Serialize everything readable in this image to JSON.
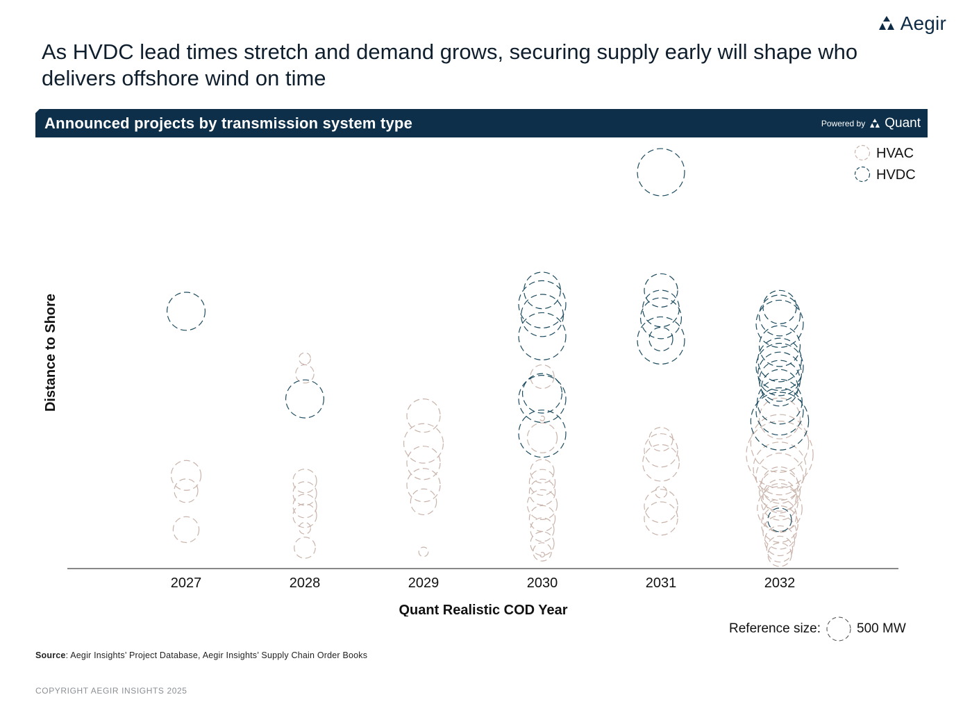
{
  "brand": {
    "name": "Aegir",
    "icon": "aegir-triangles-logo"
  },
  "headline": "As HVDC lead times stretch and demand grows, securing supply early will shape who delivers offshore wind on time",
  "banner": {
    "title": "Announced projects by transmission system type",
    "powered_label": "Powered by",
    "powered_name": "Quant"
  },
  "reference": {
    "label": "Reference size:",
    "value_label": "500 MW"
  },
  "source": {
    "label": "Source",
    "text": ": Aegir Insights’ Project Database, Aegir Insights’ Supply Chain Order Books"
  },
  "copyright": "COPYRIGHT AEGIR INSIGHTS 2025",
  "colors": {
    "hvac": "#c9b3aa",
    "hvdc": "#1b4a5e",
    "banner": "#0d2f49",
    "text": "#0f1e2d"
  },
  "chart_data": {
    "type": "scatter",
    "title": "Announced projects by transmission system type",
    "xlabel": "Quant Realistic COD Year",
    "ylabel": "Distance to Shore",
    "categories": [
      "2027",
      "2028",
      "2029",
      "2030",
      "2031",
      "2032"
    ],
    "y_range": [
      0,
      300
    ],
    "y_ticks_shown": false,
    "size_unit": "MW",
    "reference_size_mw": 500,
    "legend_position": "top-right",
    "series": [
      {
        "name": "HVAC",
        "color": "#c9b3aa",
        "points": [
          {
            "x": "2027",
            "y": 67,
            "mw": 800
          },
          {
            "x": "2027",
            "y": 56,
            "mw": 500
          },
          {
            "x": "2027",
            "y": 28,
            "mw": 600
          },
          {
            "x": "2028",
            "y": 151,
            "mw": 120
          },
          {
            "x": "2028",
            "y": 140,
            "mw": 300
          },
          {
            "x": "2028",
            "y": 63,
            "mw": 500
          },
          {
            "x": "2028",
            "y": 54,
            "mw": 500
          },
          {
            "x": "2028",
            "y": 45,
            "mw": 500
          },
          {
            "x": "2028",
            "y": 38,
            "mw": 500
          },
          {
            "x": "2028",
            "y": 29,
            "mw": 120
          },
          {
            "x": "2028",
            "y": 15,
            "mw": 400
          },
          {
            "x": "2029",
            "y": 110,
            "mw": 1000
          },
          {
            "x": "2029",
            "y": 90,
            "mw": 1400
          },
          {
            "x": "2029",
            "y": 76,
            "mw": 1000
          },
          {
            "x": "2029",
            "y": 60,
            "mw": 1000
          },
          {
            "x": "2029",
            "y": 48,
            "mw": 600
          },
          {
            "x": "2029",
            "y": 12,
            "mw": 80
          },
          {
            "x": "2030",
            "y": 138,
            "mw": 500
          },
          {
            "x": "2030",
            "y": 108,
            "mw": 20
          },
          {
            "x": "2030",
            "y": 94,
            "mw": 800
          },
          {
            "x": "2030",
            "y": 70,
            "mw": 500
          },
          {
            "x": "2030",
            "y": 62,
            "mw": 600
          },
          {
            "x": "2030",
            "y": 55,
            "mw": 600
          },
          {
            "x": "2030",
            "y": 46,
            "mw": 800
          },
          {
            "x": "2030",
            "y": 36,
            "mw": 600
          },
          {
            "x": "2030",
            "y": 28,
            "mw": 500
          },
          {
            "x": "2030",
            "y": 18,
            "mw": 500
          },
          {
            "x": "2030",
            "y": 12,
            "mw": 300
          },
          {
            "x": "2030",
            "y": 10,
            "mw": 20
          },
          {
            "x": "2031",
            "y": 93,
            "mw": 500
          },
          {
            "x": "2031",
            "y": 85,
            "mw": 1000
          },
          {
            "x": "2031",
            "y": 76,
            "mw": 1200
          },
          {
            "x": "2031",
            "y": 55,
            "mw": 120
          },
          {
            "x": "2031",
            "y": 45,
            "mw": 1000
          },
          {
            "x": "2031",
            "y": 36,
            "mw": 1000
          },
          {
            "x": "2032",
            "y": 108,
            "mw": 1500
          },
          {
            "x": "2032",
            "y": 90,
            "mw": 3000
          },
          {
            "x": "2032",
            "y": 82,
            "mw": 4000
          },
          {
            "x": "2032",
            "y": 72,
            "mw": 2500
          },
          {
            "x": "2032",
            "y": 66,
            "mw": 2000
          },
          {
            "x": "2032",
            "y": 60,
            "mw": 1200
          },
          {
            "x": "2032",
            "y": 56,
            "mw": 1500
          },
          {
            "x": "2032",
            "y": 52,
            "mw": 1000
          },
          {
            "x": "2032",
            "y": 48,
            "mw": 1200
          },
          {
            "x": "2032",
            "y": 43,
            "mw": 1800
          },
          {
            "x": "2032",
            "y": 38,
            "mw": 1000
          },
          {
            "x": "2032",
            "y": 32,
            "mw": 1200
          },
          {
            "x": "2032",
            "y": 26,
            "mw": 1000
          },
          {
            "x": "2032",
            "y": 20,
            "mw": 800
          },
          {
            "x": "2032",
            "y": 14,
            "mw": 600
          },
          {
            "x": "2032",
            "y": 10,
            "mw": 500
          }
        ]
      },
      {
        "name": "HVDC",
        "color": "#1b4a5e",
        "points": [
          {
            "x": "2027",
            "y": 185,
            "mw": 1300
          },
          {
            "x": "2028",
            "y": 122,
            "mw": 1300
          },
          {
            "x": "2030",
            "y": 200,
            "mw": 1200
          },
          {
            "x": "2030",
            "y": 190,
            "mw": 2000
          },
          {
            "x": "2030",
            "y": 182,
            "mw": 1600
          },
          {
            "x": "2030",
            "y": 167,
            "mw": 2000
          },
          {
            "x": "2030",
            "y": 126,
            "mw": 1400
          },
          {
            "x": "2030",
            "y": 122,
            "mw": 2000
          },
          {
            "x": "2030",
            "y": 97,
            "mw": 2000
          },
          {
            "x": "2031",
            "y": 285,
            "mw": 2000
          },
          {
            "x": "2031",
            "y": 200,
            "mw": 1000
          },
          {
            "x": "2031",
            "y": 187,
            "mw": 1200
          },
          {
            "x": "2031",
            "y": 180,
            "mw": 1500
          },
          {
            "x": "2031",
            "y": 165,
            "mw": 500
          },
          {
            "x": "2031",
            "y": 164,
            "mw": 2000
          },
          {
            "x": "2032",
            "y": 188,
            "mw": 1000
          },
          {
            "x": "2032",
            "y": 182,
            "mw": 1500
          },
          {
            "x": "2032",
            "y": 176,
            "mw": 2000
          },
          {
            "x": "2032",
            "y": 160,
            "mw": 1500
          },
          {
            "x": "2032",
            "y": 150,
            "mw": 1700
          },
          {
            "x": "2032",
            "y": 145,
            "mw": 2000
          },
          {
            "x": "2032",
            "y": 140,
            "mw": 1700
          },
          {
            "x": "2032",
            "y": 135,
            "mw": 1500
          },
          {
            "x": "2032",
            "y": 130,
            "mw": 1200
          },
          {
            "x": "2032",
            "y": 120,
            "mw": 1800
          },
          {
            "x": "2032",
            "y": 113,
            "mw": 2000
          },
          {
            "x": "2032",
            "y": 106,
            "mw": 3000
          },
          {
            "x": "2032",
            "y": 35,
            "mw": 500
          }
        ]
      }
    ]
  }
}
